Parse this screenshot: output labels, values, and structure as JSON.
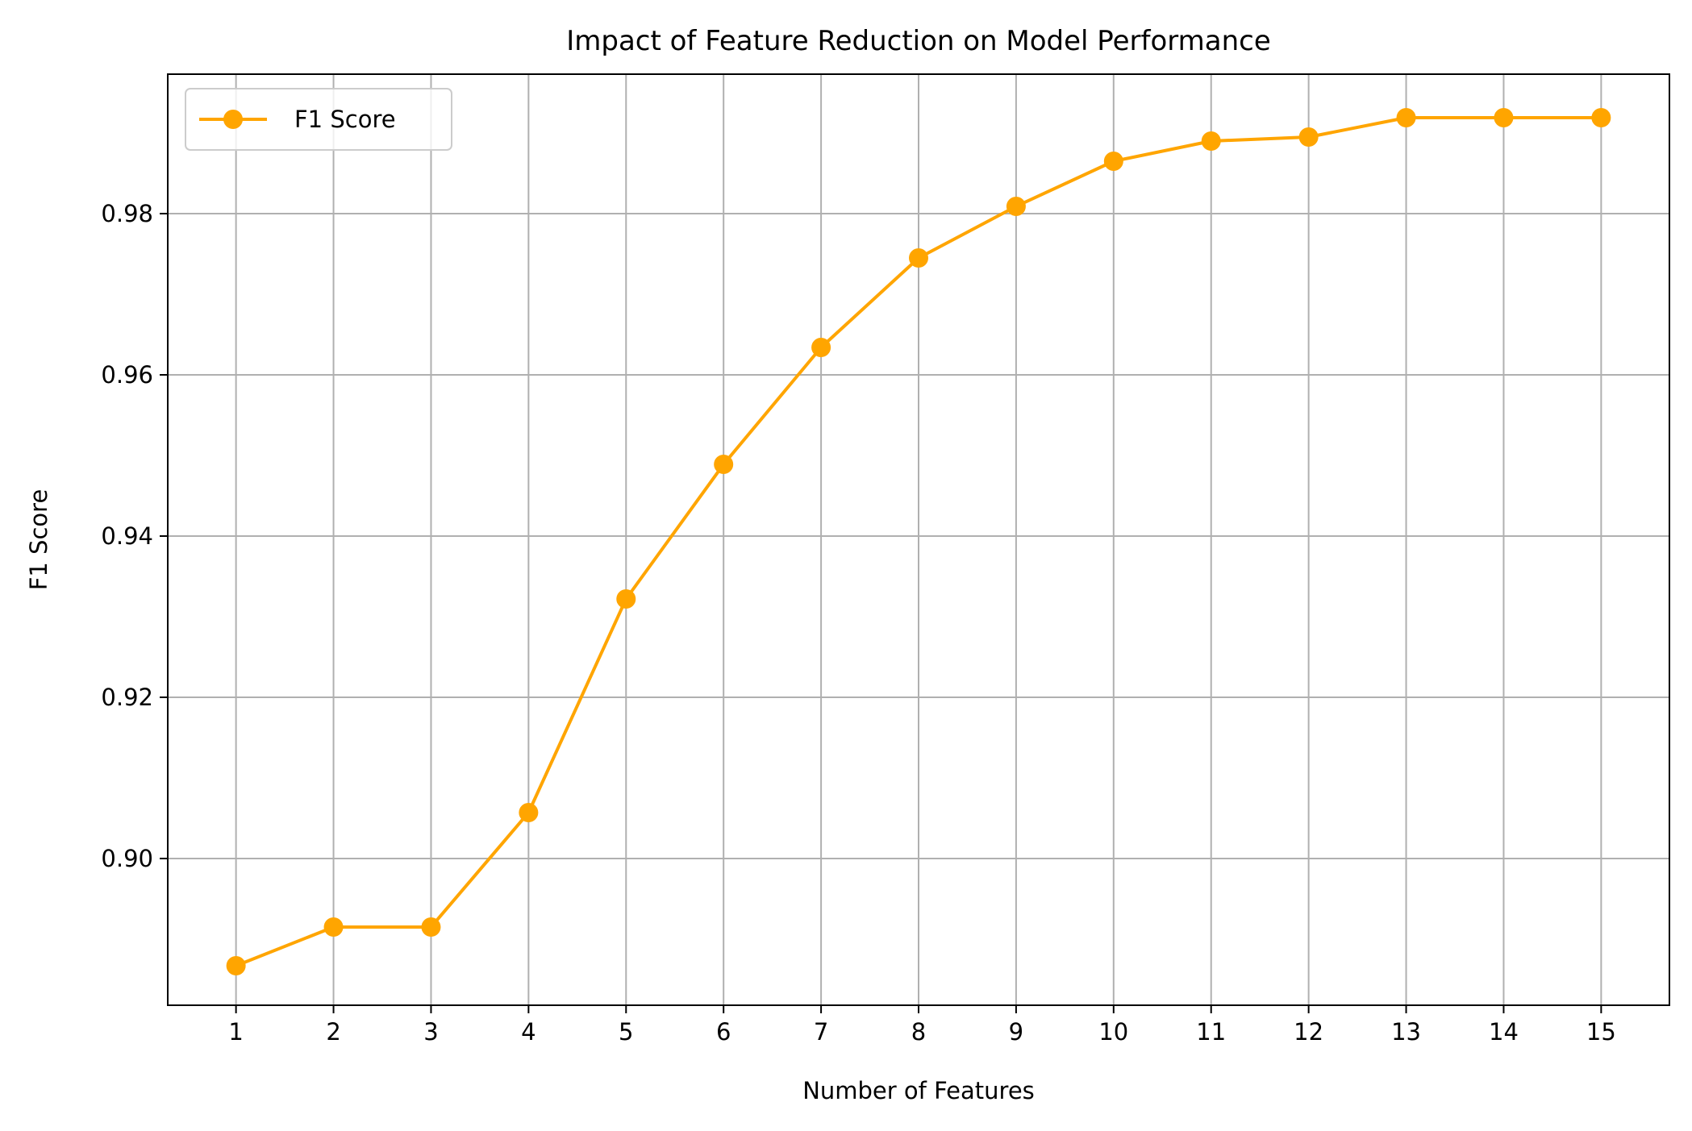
{
  "chart_data": {
    "type": "line",
    "title": "Impact of Feature Reduction on Model Performance",
    "xlabel": "Number of Features",
    "ylabel": "F1 Score",
    "x": [
      1,
      2,
      3,
      4,
      5,
      6,
      7,
      8,
      9,
      10,
      11,
      12,
      13,
      14,
      15
    ],
    "xticks": [
      "1",
      "2",
      "3",
      "4",
      "5",
      "6",
      "7",
      "8",
      "9",
      "10",
      "11",
      "12",
      "13",
      "14",
      "15"
    ],
    "yticks": [
      0.9,
      0.92,
      0.94,
      0.96,
      0.98
    ],
    "ytick_labels": [
      "0.90",
      "0.92",
      "0.94",
      "0.96",
      "0.98"
    ],
    "xlim": [
      0.3,
      15.7
    ],
    "ylim": [
      0.8818,
      0.9973
    ],
    "series": [
      {
        "name": "F1 Score",
        "color": "#FFA500",
        "marker": "circle",
        "values": [
          0.8867,
          0.8915,
          0.8915,
          0.9057,
          0.9322,
          0.9489,
          0.9634,
          0.9745,
          0.9809,
          0.9865,
          0.989,
          0.9895,
          0.9919,
          0.9919,
          0.9919
        ]
      }
    ],
    "grid": true,
    "legend_position": "upper-left"
  }
}
